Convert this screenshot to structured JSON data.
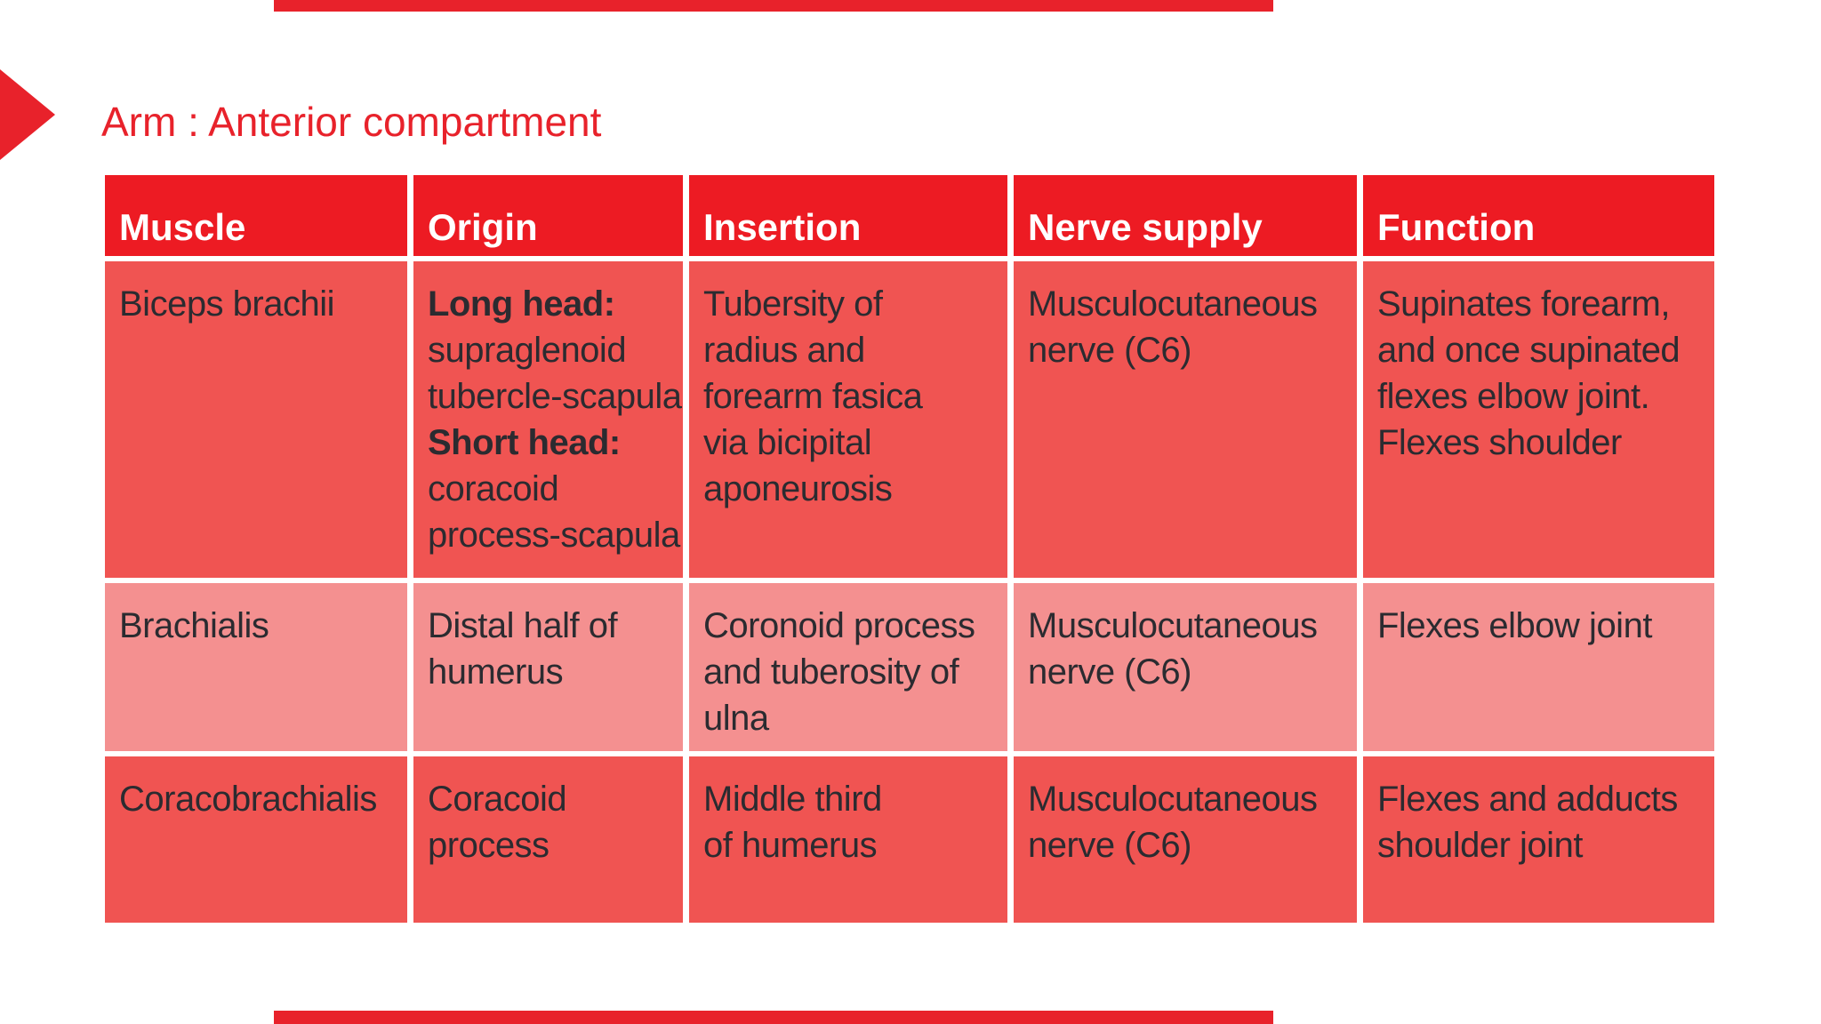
{
  "slide": {
    "title": "Arm : Anterior compartment",
    "accent_color": "#E8222B",
    "decor": {
      "top_bar": "red-accent-bar",
      "bottom_bar": "red-accent-bar",
      "left_marker": "right-pointing-triangle"
    }
  },
  "colors": {
    "header_bg": "#ED1B23",
    "header_text": "#FFFFFF",
    "body_text": "#2B2B30",
    "row_salmon": "#F05452",
    "row_pink": "#F49090",
    "grid_gap": "#FFFFFF"
  },
  "table": {
    "headers": [
      "Muscle",
      "Origin",
      "Insertion",
      "Nerve supply",
      "Function"
    ],
    "rows": [
      {
        "bg": "#F05452",
        "cells": [
          {
            "text": "Biceps brachii"
          },
          {
            "segments": [
              {
                "text": "Long head:",
                "bold": true
              },
              {
                "text": "supraglenoid\ntubercle-scapula",
                "bold": false
              },
              {
                "text": "Short head:",
                "bold": true
              },
              {
                "text": "coracoid\nprocess-scapula",
                "bold": false
              }
            ]
          },
          {
            "text": "Tubersity of\nradius and\nforearm fasica\nvia bicipital\naponeurosis"
          },
          {
            "text": "Musculocutaneous\nnerve (C6)"
          },
          {
            "text": "Supinates forearm,\nand once supinated\nflexes elbow joint.\nFlexes shoulder"
          }
        ]
      },
      {
        "bg": "#F49090",
        "cells": [
          {
            "text": "Brachialis"
          },
          {
            "text": "Distal half of\nhumerus"
          },
          {
            "text": "Coronoid process\nand tuberosity of\nulna"
          },
          {
            "text": "Musculocutaneous\nnerve (C6)"
          },
          {
            "text": "Flexes elbow joint"
          }
        ]
      },
      {
        "bg": "#F05452",
        "cells": [
          {
            "text": "Coracobrachialis"
          },
          {
            "text": "Coracoid\nprocess"
          },
          {
            "text": "Middle third\nof humerus"
          },
          {
            "text": "Musculocutaneous\nnerve (C6)"
          },
          {
            "text": "Flexes and adducts\nshoulder joint"
          }
        ]
      }
    ]
  }
}
